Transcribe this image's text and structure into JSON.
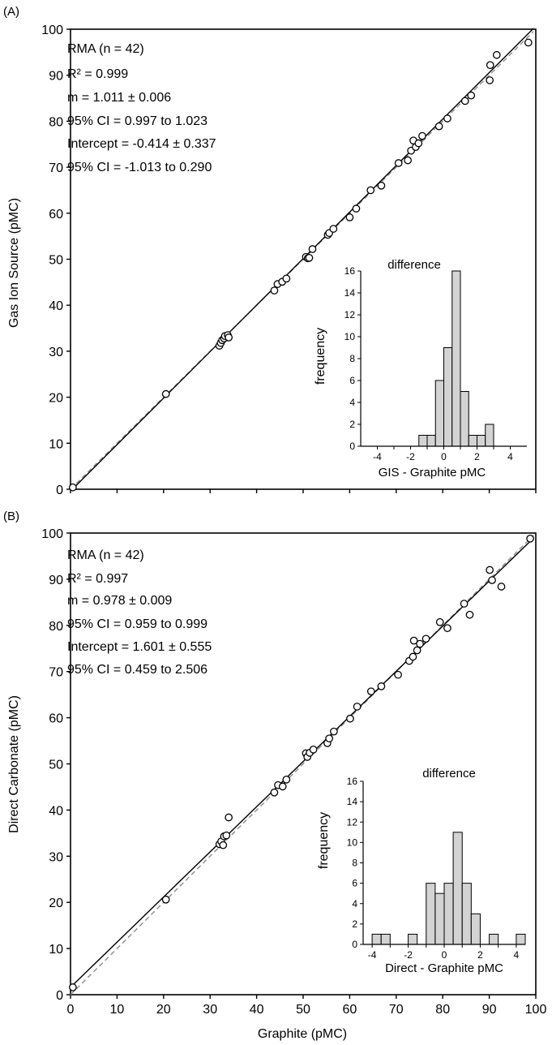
{
  "x_axis_label": "Graphite (pMC)",
  "chart_data": [
    {
      "type": "scatter",
      "panel_label": "(A)",
      "xlabel": "",
      "ylabel": "Gas Ion Source (pMC)",
      "xlim": [
        0,
        100
      ],
      "ylim": [
        0,
        100
      ],
      "xticks": [],
      "yticks": [
        "0",
        "10",
        "20",
        "30",
        "40",
        "50",
        "60",
        "70",
        "80",
        "90",
        "100"
      ],
      "stats": [
        "RMA (n = 42)",
        "R² = 0.999",
        "m = 1.011 ± 0.006",
        "95% CI = 0.997 to 1.023",
        "Intercept = -0.414 ± 0.337",
        "95% CI = -1.013 to 0.290"
      ],
      "fit": {
        "slope": 1.011,
        "intercept": -0.414
      },
      "reference_line": {
        "slope": 1,
        "intercept": 0
      },
      "points": [
        [
          0.5,
          0.4
        ],
        [
          20.5,
          20.7
        ],
        [
          32.0,
          31.2
        ],
        [
          32.3,
          31.8
        ],
        [
          32.6,
          32.4
        ],
        [
          33.0,
          32.8
        ],
        [
          33.2,
          33.3
        ],
        [
          33.8,
          33.5
        ],
        [
          34.0,
          33.0
        ],
        [
          43.8,
          43.2
        ],
        [
          44.5,
          44.6
        ],
        [
          45.5,
          45.1
        ],
        [
          46.4,
          45.8
        ],
        [
          50.6,
          50.5
        ],
        [
          51.0,
          50.2
        ],
        [
          51.3,
          50.3
        ],
        [
          52.0,
          52.2
        ],
        [
          55.3,
          55.3
        ],
        [
          55.6,
          55.7
        ],
        [
          56.5,
          56.6
        ],
        [
          60.0,
          59.1
        ],
        [
          61.4,
          61.0
        ],
        [
          64.5,
          65.0
        ],
        [
          66.8,
          66.0
        ],
        [
          70.5,
          70.9
        ],
        [
          72.5,
          71.5
        ],
        [
          73.2,
          73.6
        ],
        [
          73.7,
          75.8
        ],
        [
          74.2,
          74.4
        ],
        [
          74.8,
          75.2
        ],
        [
          75.6,
          76.8
        ],
        [
          79.2,
          78.9
        ],
        [
          81.0,
          80.6
        ],
        [
          84.8,
          84.4
        ],
        [
          86.1,
          85.6
        ],
        [
          90.1,
          88.9
        ],
        [
          90.2,
          92.2
        ],
        [
          91.6,
          94.4
        ],
        [
          98.4,
          97.1
        ]
      ],
      "inset": {
        "title": "difference",
        "xlabel": "GIS - Graphite pMC",
        "ylabel": "frequency",
        "xlim": [
          -5,
          5
        ],
        "ylim": [
          0,
          16
        ],
        "xticks": [
          -4,
          -2,
          0,
          2,
          4
        ],
        "yticks": [
          0,
          2,
          4,
          6,
          8,
          10,
          12,
          14,
          16
        ],
        "bin_width": 0.5,
        "bins": [
          {
            "start": -1.5,
            "count": 1
          },
          {
            "start": -1.0,
            "count": 1
          },
          {
            "start": -0.5,
            "count": 6
          },
          {
            "start": 0.0,
            "count": 9
          },
          {
            "start": 0.5,
            "count": 16
          },
          {
            "start": 1.0,
            "count": 5
          },
          {
            "start": 1.5,
            "count": 1
          },
          {
            "start": 2.0,
            "count": 1
          },
          {
            "start": 2.5,
            "count": 2
          }
        ]
      }
    },
    {
      "type": "scatter",
      "panel_label": "(B)",
      "xlabel": "Graphite (pMC)",
      "ylabel": "Direct Carbonate (pMC)",
      "xlim": [
        0,
        100
      ],
      "ylim": [
        0,
        100
      ],
      "xticks": [
        "0",
        "10",
        "20",
        "30",
        "40",
        "50",
        "60",
        "70",
        "80",
        "90",
        "100"
      ],
      "yticks": [
        "0",
        "10",
        "20",
        "30",
        "40",
        "50",
        "60",
        "70",
        "80",
        "90",
        "100"
      ],
      "stats": [
        "RMA (n = 42)",
        "R² = 0.997",
        "m = 0.978 ± 0.009",
        "95% CI = 0.959 to 0.999",
        "Intercept = 1.601 ± 0.555",
        "95% CI = 0.459 to 2.506"
      ],
      "fit": {
        "slope": 0.978,
        "intercept": 1.601
      },
      "reference_line": {
        "slope": 1,
        "intercept": 0
      },
      "points": [
        [
          0.5,
          1.6
        ],
        [
          20.5,
          20.6
        ],
        [
          32.0,
          32.6
        ],
        [
          32.4,
          33.2
        ],
        [
          32.8,
          32.4
        ],
        [
          33.0,
          34.3
        ],
        [
          33.5,
          34.5
        ],
        [
          34.0,
          38.4
        ],
        [
          43.8,
          43.8
        ],
        [
          44.6,
          45.4
        ],
        [
          45.6,
          45.1
        ],
        [
          46.4,
          46.6
        ],
        [
          50.6,
          52.3
        ],
        [
          50.9,
          51.5
        ],
        [
          51.4,
          52.4
        ],
        [
          52.2,
          53.1
        ],
        [
          55.2,
          54.5
        ],
        [
          55.6,
          55.5
        ],
        [
          56.6,
          57.0
        ],
        [
          60.1,
          59.8
        ],
        [
          61.6,
          62.4
        ],
        [
          64.6,
          65.7
        ],
        [
          66.8,
          66.8
        ],
        [
          70.4,
          69.3
        ],
        [
          72.8,
          72.3
        ],
        [
          73.6,
          73.2
        ],
        [
          73.8,
          76.7
        ],
        [
          74.5,
          74.6
        ],
        [
          75.1,
          76.0
        ],
        [
          76.4,
          77.1
        ],
        [
          79.4,
          80.7
        ],
        [
          81.0,
          79.4
        ],
        [
          84.6,
          84.7
        ],
        [
          85.8,
          82.3
        ],
        [
          90.1,
          92.0
        ],
        [
          90.6,
          89.8
        ],
        [
          92.6,
          88.4
        ],
        [
          98.8,
          98.8
        ]
      ],
      "inset": {
        "title": "difference",
        "xlabel": "Direct - Graphite pMC",
        "ylabel": "frequency",
        "xlim": [
          -4.5,
          4.5
        ],
        "ylim": [
          0,
          16
        ],
        "xticks": [
          -4,
          -2,
          0,
          2,
          4
        ],
        "yticks": [
          0,
          2,
          4,
          6,
          8,
          10,
          12,
          14,
          16
        ],
        "bin_width": 0.5,
        "bins": [
          {
            "start": -4.0,
            "count": 1
          },
          {
            "start": -3.5,
            "count": 1
          },
          {
            "start": -2.0,
            "count": 1
          },
          {
            "start": -1.0,
            "count": 6
          },
          {
            "start": -0.5,
            "count": 5
          },
          {
            "start": 0.0,
            "count": 6
          },
          {
            "start": 0.5,
            "count": 11
          },
          {
            "start": 1.0,
            "count": 6
          },
          {
            "start": 1.5,
            "count": 3
          },
          {
            "start": 2.5,
            "count": 1
          },
          {
            "start": 4.0,
            "count": 1
          }
        ]
      }
    }
  ]
}
